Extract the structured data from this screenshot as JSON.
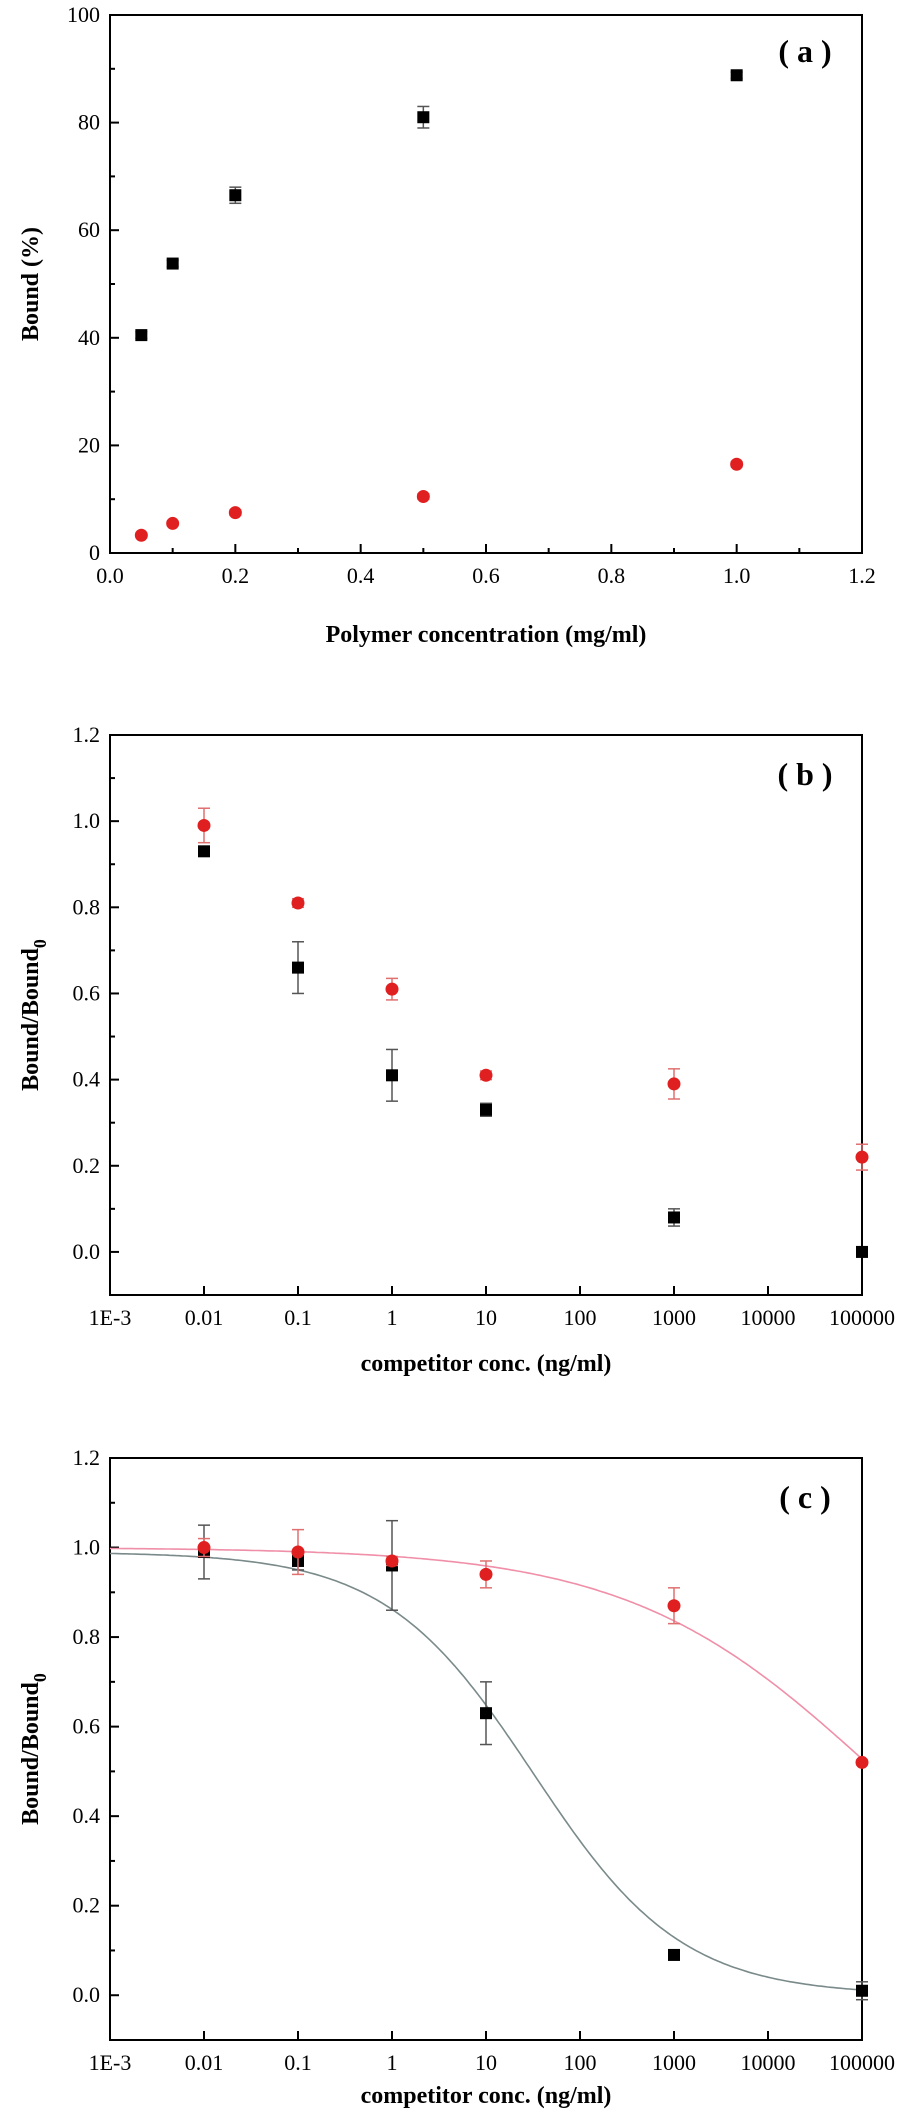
{
  "chart_data": [
    {
      "type": "scatter",
      "panel_label": "( a )",
      "xlabel": "Polymer concentration (mg/ml)",
      "ylabel": "Bound (%)",
      "xlim": [
        0,
        1.2
      ],
      "ylim": [
        0,
        100
      ],
      "xscale": "linear",
      "xticks": [
        0.0,
        0.2,
        0.4,
        0.6,
        0.8,
        1.0,
        1.2
      ],
      "xtick_labels": [
        "0.0",
        "0.2",
        "0.4",
        "0.6",
        "0.8",
        "1.0",
        "1.2"
      ],
      "yticks": [
        0,
        20,
        40,
        60,
        80,
        100
      ],
      "ytick_labels": [
        "0",
        "20",
        "40",
        "60",
        "80",
        "100"
      ],
      "grid": false,
      "series": [
        {
          "name": "series-1",
          "marker": "square",
          "color": "#000000",
          "errcolor": "#555555",
          "x": [
            0.05,
            0.1,
            0.2,
            0.5,
            1.0
          ],
          "y": [
            40.5,
            53.8,
            66.5,
            81.0,
            88.8
          ],
          "err": [
            0.6,
            0.6,
            1.5,
            2.0,
            0.6
          ]
        },
        {
          "name": "series-2",
          "marker": "circle",
          "color": "#e02020",
          "errcolor": "#e07070",
          "x": [
            0.05,
            0.1,
            0.2,
            0.5,
            1.0
          ],
          "y": [
            3.3,
            5.5,
            7.5,
            10.5,
            16.5
          ],
          "err": [
            0.4,
            0.4,
            0.5,
            0.5,
            0.5
          ]
        }
      ]
    },
    {
      "type": "scatter",
      "panel_label": "( b )",
      "xlabel": "competitor conc. (ng/ml)",
      "ylabel_main": "Bound/Bound",
      "ylabel_sub": "0",
      "xlim": [
        0.001,
        100000
      ],
      "ylim": [
        -0.1,
        1.2
      ],
      "xscale": "log",
      "xticks": [
        0.001,
        0.01,
        0.1,
        1,
        10,
        100,
        1000,
        10000,
        100000
      ],
      "xtick_labels": [
        "1E-3",
        "0.01",
        "0.1",
        "1",
        "10",
        "100",
        "1000",
        "10000",
        "100000"
      ],
      "yticks": [
        0.0,
        0.2,
        0.4,
        0.6,
        0.8,
        1.0,
        1.2
      ],
      "ytick_labels": [
        "0.0",
        "0.2",
        "0.4",
        "0.6",
        "0.8",
        "1.0",
        "1.2"
      ],
      "grid": false,
      "series": [
        {
          "name": "series-1",
          "marker": "square",
          "color": "#000000",
          "errcolor": "#555555",
          "x": [
            0.01,
            0.1,
            1,
            10,
            1000,
            100000
          ],
          "y": [
            0.93,
            0.66,
            0.41,
            0.33,
            0.08,
            0.0
          ],
          "err": [
            0.01,
            0.06,
            0.06,
            0.015,
            0.02,
            0.005
          ]
        },
        {
          "name": "series-2",
          "marker": "circle",
          "color": "#e02020",
          "errcolor": "#e07070",
          "x": [
            0.01,
            0.1,
            1,
            10,
            1000,
            100000
          ],
          "y": [
            0.99,
            0.81,
            0.61,
            0.41,
            0.39,
            0.22
          ],
          "err": [
            0.04,
            0.01,
            0.025,
            0.01,
            0.035,
            0.03
          ]
        }
      ]
    },
    {
      "type": "scatter",
      "panel_label": "( c )",
      "xlabel": "competitor conc. (ng/ml)",
      "ylabel_main": "Bound/Bound",
      "ylabel_sub": "0",
      "xlim": [
        0.001,
        100000
      ],
      "ylim": [
        -0.1,
        1.2
      ],
      "xscale": "log",
      "xticks": [
        0.001,
        0.01,
        0.1,
        1,
        10,
        100,
        1000,
        10000,
        100000
      ],
      "xtick_labels": [
        "1E-3",
        "0.01",
        "0.1",
        "1",
        "10",
        "100",
        "1000",
        "10000",
        "100000"
      ],
      "yticks": [
        0.0,
        0.2,
        0.4,
        0.6,
        0.8,
        1.0,
        1.2
      ],
      "ytick_labels": [
        "0.0",
        "0.2",
        "0.4",
        "0.6",
        "0.8",
        "1.0",
        "1.2"
      ],
      "grid": false,
      "series": [
        {
          "name": "series-1",
          "marker": "square",
          "color": "#000000",
          "errcolor": "#555555",
          "x": [
            0.01,
            0.1,
            1,
            10,
            1000,
            100000
          ],
          "y": [
            0.99,
            0.97,
            0.96,
            0.63,
            0.09,
            0.01
          ],
          "err": [
            0.06,
            0.02,
            0.1,
            0.07,
            0.005,
            0.02
          ],
          "fit": {
            "top": 0.99,
            "bottom": 0.0,
            "ic50": 32,
            "hill": 0.55,
            "color": "#7a8a8a"
          }
        },
        {
          "name": "series-2",
          "marker": "circle",
          "color": "#e02020",
          "errcolor": "#e07070",
          "x": [
            0.01,
            0.1,
            1,
            10,
            1000,
            100000
          ],
          "y": [
            1.0,
            0.99,
            0.97,
            0.94,
            0.87,
            0.52
          ],
          "err": [
            0.02,
            0.05,
            0.01,
            0.03,
            0.04,
            0.005
          ],
          "fit": {
            "top": 1.0,
            "bottom": 0.0,
            "ic50": 140000,
            "hill": 0.33,
            "color": "#f08fa8"
          }
        }
      ]
    }
  ]
}
